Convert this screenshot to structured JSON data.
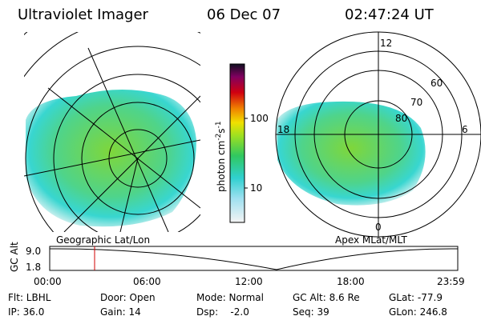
{
  "header": {
    "instrument": "Ultraviolet Imager",
    "date": "06 Dec 07",
    "time": "02:47:24 UT"
  },
  "left_panel": {
    "label": "Geographic Lat/Lon"
  },
  "right_panel": {
    "label": "Apex MLat/MLT",
    "mlt_labels": [
      "12",
      "18",
      "6",
      "0"
    ],
    "lat_labels": [
      "60",
      "70",
      "80"
    ]
  },
  "colorbar": {
    "label": {
      "base": "photon cm",
      "exp1": "-2",
      "mid": "s",
      "exp2": "-1"
    },
    "ticks": [
      "100",
      "10"
    ]
  },
  "altitude_plot": {
    "ylabel": "GC Alt",
    "yticks": [
      "9.0",
      "1.8"
    ],
    "xticks": [
      "00:00",
      "06:00",
      "12:00",
      "18:00",
      "23:59"
    ]
  },
  "info": {
    "rows": [
      [
        "Flt: LBHL",
        "Door: Open",
        "Mode: Normal",
        "GC Alt: 8.6 Re",
        "GLat: -77.9"
      ],
      [
        "IP: 36.0",
        "Gain: 14",
        "Dsp:    -2.0",
        "Seq: 39",
        "GLon: 246.8"
      ]
    ]
  }
}
